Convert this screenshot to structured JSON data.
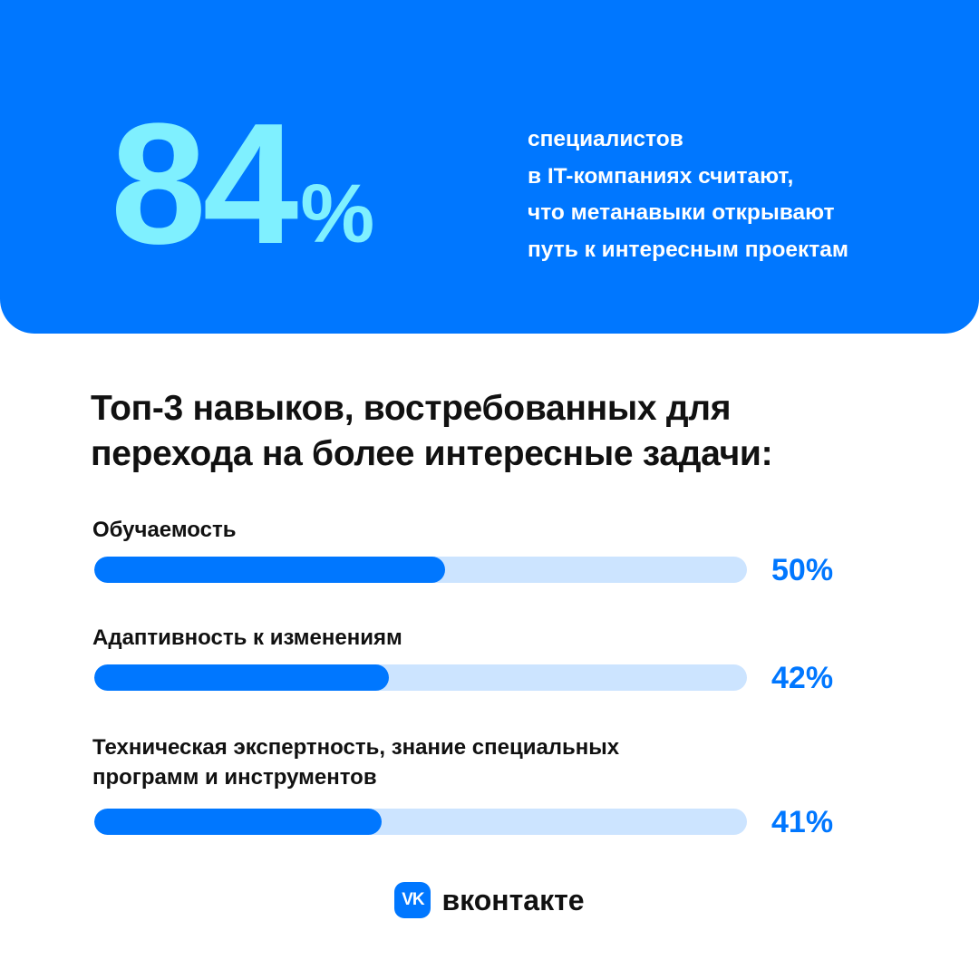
{
  "hero": {
    "big_value": "84",
    "big_unit": "%",
    "lines": [
      "специалистов",
      "в IT-компаниях считают,",
      "что метанавыки открывают",
      "путь к интересным проектам"
    ]
  },
  "section": {
    "title_lines": [
      "Топ-3 навыков, востребованных для",
      "перехода на более интересные задачи:"
    ]
  },
  "chart_data": {
    "type": "bar",
    "orientation": "horizontal",
    "categories": [
      "Обучаемость",
      "Адаптивность к изменениям",
      "Техническая экспертность, знание специальных программ и инструментов"
    ],
    "values": [
      50,
      42,
      41
    ],
    "value_labels": [
      "50%",
      "42%",
      "41%"
    ],
    "ylim": [
      0,
      100
    ],
    "colors": {
      "fill": "#0077ff",
      "track": "#cce4ff",
      "value_text": "#0077ff"
    }
  },
  "items": [
    {
      "label_lines": [
        "Обучаемость"
      ],
      "value_label": "50%"
    },
    {
      "label_lines": [
        "Адаптивность к изменениям"
      ],
      "value_label": "42%"
    },
    {
      "label_lines": [
        "Техническая экспертность, знание специальных",
        "программ и инструментов"
      ],
      "value_label": "41%"
    }
  ],
  "footer": {
    "logo_text": "VK",
    "logo_icon": "vk-logo-icon",
    "brand": "вконтакте"
  },
  "colors": {
    "hero_bg": "#0077ff",
    "hero_number": "#7ff0ff",
    "accent": "#0077ff"
  }
}
